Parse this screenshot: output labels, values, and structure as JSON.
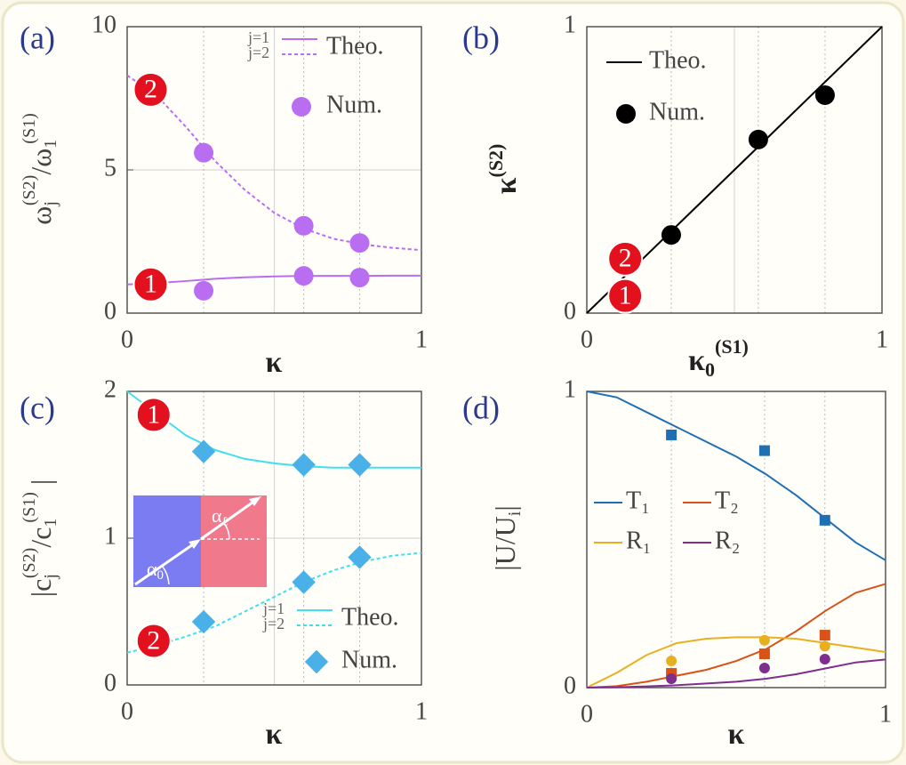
{
  "chart_data": [
    {
      "type": "line",
      "panel_label": "(a)",
      "x_label": "κ",
      "y_label": [
        "ω",
        "j",
        "(S2)",
        "/ω",
        "1",
        "(S1)"
      ],
      "xlim": [
        0,
        1
      ],
      "ylim": [
        0,
        10
      ],
      "xticks": [
        0,
        1
      ],
      "yticks": [
        0,
        5,
        10
      ],
      "grid": true,
      "legend": "upper right",
      "x": [
        0,
        0.1,
        0.2,
        0.3,
        0.4,
        0.5,
        0.6,
        0.7,
        0.8,
        0.9,
        1
      ],
      "series": [
        {
          "name": "j=1",
          "color": "#b96ef2",
          "dashed": false,
          "values": [
            1.0,
            1.05,
            1.12,
            1.2,
            1.25,
            1.28,
            1.3,
            1.3,
            1.3,
            1.31,
            1.31
          ]
        },
        {
          "name": "j=2",
          "color": "#b96ef2",
          "dashed": true,
          "values": [
            8.3,
            7.6,
            6.5,
            5.3,
            4.3,
            3.5,
            2.95,
            2.6,
            2.4,
            2.28,
            2.2
          ]
        }
      ],
      "theo_label": "Theo.",
      "num_label": "Num.",
      "points": [
        {
          "marker": "circle",
          "color": "#b96ef2",
          "x": [
            0.26,
            0.6,
            0.79
          ],
          "values": [
            0.78,
            1.3,
            1.24
          ]
        },
        {
          "marker": "circle",
          "color": "#b96ef2",
          "x": [
            0.26,
            0.6,
            0.79
          ],
          "values": [
            5.6,
            3.05,
            2.45
          ]
        }
      ],
      "annotations": [
        {
          "text": "2",
          "x": 0.08,
          "y": 7.8
        },
        {
          "text": "1",
          "x": 0.08,
          "y": 1.0
        }
      ]
    },
    {
      "type": "line",
      "panel_label": "(b)",
      "x_label": [
        "κ",
        "0",
        "(S1)"
      ],
      "y_label": [
        "κ",
        "(S2)"
      ],
      "xlim": [
        0,
        1
      ],
      "ylim": [
        0,
        1
      ],
      "xticks": [
        0,
        1
      ],
      "yticks": [
        0,
        1
      ],
      "grid": true,
      "legend": "upper left",
      "x": [
        0,
        1
      ],
      "series": [
        {
          "name": "Theo.",
          "color": "#000000",
          "dashed": false,
          "values": [
            0,
            1
          ]
        }
      ],
      "num_label": "Num.",
      "points": [
        {
          "marker": "circle",
          "color": "#000000",
          "x": [
            0.286,
            0.581,
            0.807
          ],
          "values": [
            0.273,
            0.606,
            0.761
          ]
        }
      ],
      "annotations": [
        {
          "text": "2",
          "x": 0.13,
          "y": 0.19
        },
        {
          "text": "1",
          "x": 0.13,
          "y": 0.06
        }
      ]
    },
    {
      "type": "line",
      "panel_label": "(c)",
      "x_label": "κ",
      "y_label": [
        "|c",
        "j",
        "(S2)",
        "/c",
        "1",
        "(S1)",
        " |"
      ],
      "xlim": [
        0,
        1
      ],
      "ylim": [
        0,
        2
      ],
      "xticks": [
        0,
        1
      ],
      "yticks": [
        0,
        1,
        2
      ],
      "grid": true,
      "legend": "lower right",
      "x": [
        0,
        0.1,
        0.2,
        0.3,
        0.4,
        0.5,
        0.6,
        0.7,
        0.8,
        0.9,
        1
      ],
      "series": [
        {
          "name": "j=1",
          "color": "#40dff0",
          "dashed": false,
          "values": [
            2.0,
            1.85,
            1.7,
            1.6,
            1.54,
            1.51,
            1.49,
            1.48,
            1.48,
            1.48,
            1.48
          ]
        },
        {
          "name": "j=2",
          "color": "#40dff0",
          "dashed": true,
          "values": [
            0.22,
            0.27,
            0.33,
            0.4,
            0.5,
            0.6,
            0.7,
            0.78,
            0.84,
            0.88,
            0.9
          ]
        }
      ],
      "theo_label": "Theo.",
      "num_label": "Num.",
      "points": [
        {
          "marker": "diamond",
          "color": "#4ab0e8",
          "x": [
            0.26,
            0.6,
            0.79
          ],
          "values": [
            1.59,
            1.5,
            1.5
          ]
        },
        {
          "marker": "diamond",
          "color": "#4ab0e8",
          "x": [
            0.26,
            0.6,
            0.79
          ],
          "values": [
            0.43,
            0.7,
            0.87
          ]
        }
      ],
      "annotations": [
        {
          "text": "1",
          "x": 0.09,
          "y": 1.84
        },
        {
          "text": "2",
          "x": 0.09,
          "y": 0.3
        }
      ],
      "inset_labels": [
        [
          "α",
          "ℓ"
        ],
        [
          "α",
          "0"
        ]
      ]
    },
    {
      "type": "line",
      "panel_label": "(d)",
      "x_label": "κ",
      "y_label": [
        "|U/U",
        "i",
        "|"
      ],
      "xlim": [
        0,
        1
      ],
      "ylim": [
        0,
        1
      ],
      "xticks": [
        0,
        1
      ],
      "yticks": [
        0,
        1
      ],
      "grid": false,
      "legend": "center left",
      "x": [
        0,
        0.1,
        0.2,
        0.3,
        0.4,
        0.5,
        0.6,
        0.7,
        0.8,
        0.9,
        1
      ],
      "series": [
        {
          "name": "T₁",
          "color": "#1f6fb5",
          "dashed": false,
          "values": [
            1.0,
            0.98,
            0.93,
            0.88,
            0.83,
            0.78,
            0.72,
            0.65,
            0.57,
            0.49,
            0.43
          ]
        },
        {
          "name": "T₂",
          "color": "#d95319",
          "dashed": false,
          "values": [
            0,
            0.005,
            0.02,
            0.04,
            0.06,
            0.09,
            0.13,
            0.19,
            0.26,
            0.32,
            0.35
          ]
        },
        {
          "name": "R₁",
          "color": "#e8b020",
          "dashed": false,
          "values": [
            0,
            0.05,
            0.11,
            0.15,
            0.165,
            0.17,
            0.17,
            0.165,
            0.15,
            0.135,
            0.12
          ]
        },
        {
          "name": "R₂",
          "color": "#7e2f8e",
          "dashed": false,
          "values": [
            0,
            0.001,
            0.004,
            0.008,
            0.014,
            0.02,
            0.03,
            0.045,
            0.065,
            0.085,
            0.095
          ]
        }
      ],
      "points": [
        {
          "marker": "square",
          "color": "#1f6fb5",
          "x": [
            0.283,
            0.595,
            0.797
          ],
          "values": [
            0.853,
            0.8,
            0.565
          ]
        },
        {
          "marker": "square",
          "color": "#d95319",
          "x": [
            0.283,
            0.595,
            0.797
          ],
          "values": [
            0.048,
            0.114,
            0.177
          ]
        },
        {
          "marker": "circle",
          "color": "#e8b020",
          "x": [
            0.283,
            0.595,
            0.797
          ],
          "values": [
            0.09,
            0.16,
            0.14
          ]
        },
        {
          "marker": "circle",
          "color": "#7e2f8e",
          "x": [
            0.283,
            0.595,
            0.797
          ],
          "values": [
            0.03,
            0.066,
            0.096
          ]
        }
      ]
    }
  ]
}
